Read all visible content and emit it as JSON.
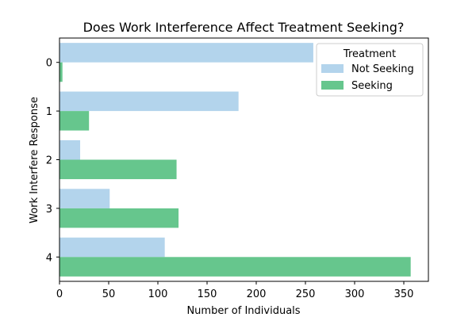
{
  "chart_data": {
    "type": "bar",
    "orientation": "horizontal",
    "title": "Does Work Interference Affect Treatment Seeking?",
    "xlabel": "Number of Individuals",
    "ylabel": "Work Interfere Response",
    "categories": [
      "0",
      "1",
      "2",
      "3",
      "4"
    ],
    "series": [
      {
        "name": "Not Seeking",
        "color": "#b3d4ec",
        "values": [
          258,
          182,
          21,
          51,
          107
        ]
      },
      {
        "name": "Seeking",
        "color": "#66c68d",
        "values": [
          3,
          30,
          119,
          121,
          357
        ]
      }
    ],
    "xlim": [
      0,
      375
    ],
    "xticks": [
      0,
      50,
      100,
      150,
      200,
      250,
      300,
      350
    ],
    "grid": false,
    "legend": {
      "title": "Treatment",
      "placement": "top-right"
    }
  }
}
